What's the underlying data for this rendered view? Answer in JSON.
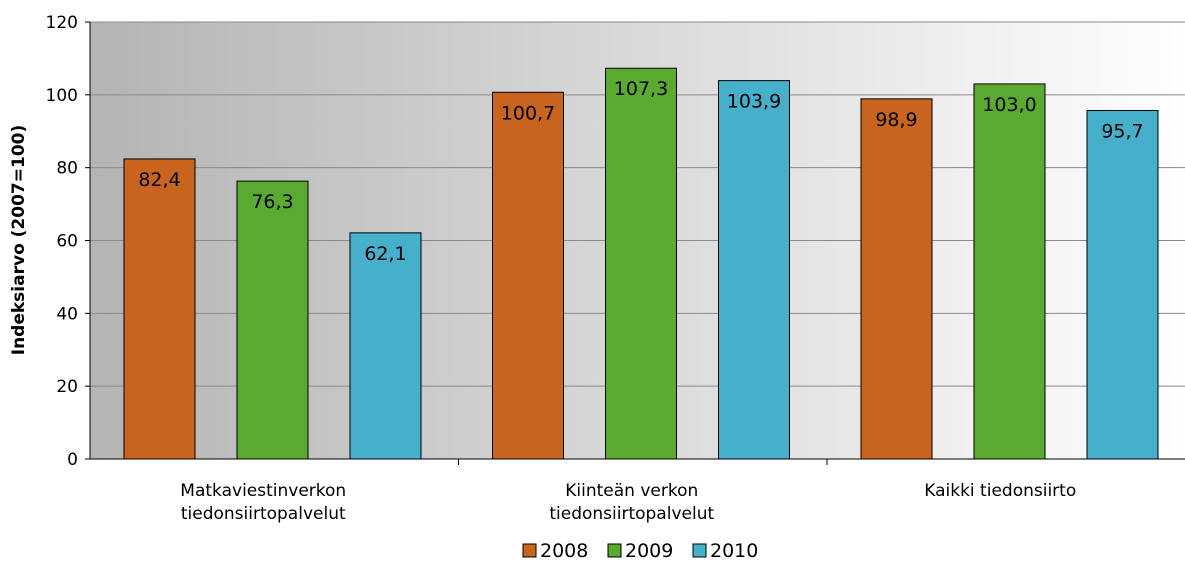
{
  "chart_data": {
    "type": "bar",
    "title": "",
    "xlabel": "",
    "ylabel": "Indeksiarvo (2007=100)",
    "ylim": [
      0,
      120
    ],
    "yticks": [
      0,
      20,
      40,
      60,
      80,
      100,
      120
    ],
    "grid": true,
    "legend_position": "bottom",
    "categories": [
      [
        "Matkaviestinverkon",
        "tiedonsiirtopalvelut"
      ],
      [
        "Kiinteän verkon",
        "tiedonsiirtopalvelut"
      ],
      [
        "Kaikki tiedonsiirto"
      ]
    ],
    "series": [
      {
        "name": "2008",
        "color": "#C8641E",
        "values": [
          82.4,
          100.7,
          98.9
        ],
        "labels": [
          "82,4",
          "100,7",
          "98,9"
        ]
      },
      {
        "name": "2009",
        "color": "#5AAA32",
        "values": [
          76.3,
          107.3,
          103.0
        ],
        "labels": [
          "76,3",
          "107,3",
          "103,0"
        ]
      },
      {
        "name": "2010",
        "color": "#46AFCA",
        "values": [
          62.1,
          103.9,
          95.7
        ],
        "labels": [
          "62,1",
          "103,9",
          "95,7"
        ]
      }
    ]
  }
}
